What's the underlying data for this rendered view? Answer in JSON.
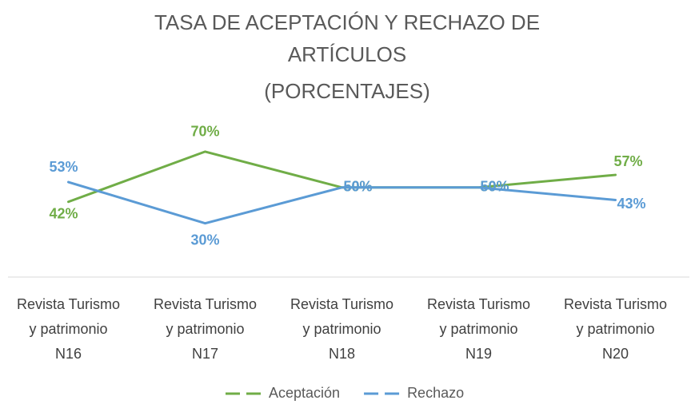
{
  "chart_data": {
    "type": "line",
    "title": "TASA DE ACEPTACIÓN Y RECHAZO DE ARTÍCULOS",
    "subtitle": "(PORCENTAJES)",
    "categories": [
      "Revista Turismo y patrimonio N16",
      "Revista Turismo y patrimonio N17",
      "Revista Turismo y patrimonio N18",
      "Revista Turismo y patrimonio N19",
      "Revista Turismo y patrimonio N20"
    ],
    "series": [
      {
        "name": "Aceptación",
        "color": "#70ad47",
        "values": [
          42,
          70,
          50,
          50,
          57
        ],
        "value_labels": [
          "42%",
          "70%",
          "50%",
          "50%",
          "57%"
        ]
      },
      {
        "name": "Rechazo",
        "color": "#5b9bd5",
        "values": [
          53,
          30,
          50,
          50,
          43
        ],
        "value_labels": [
          "53%",
          "30%",
          "50%",
          "50%",
          "43%"
        ]
      }
    ],
    "ylim": [
      0,
      90
    ],
    "legend": "bottom"
  }
}
